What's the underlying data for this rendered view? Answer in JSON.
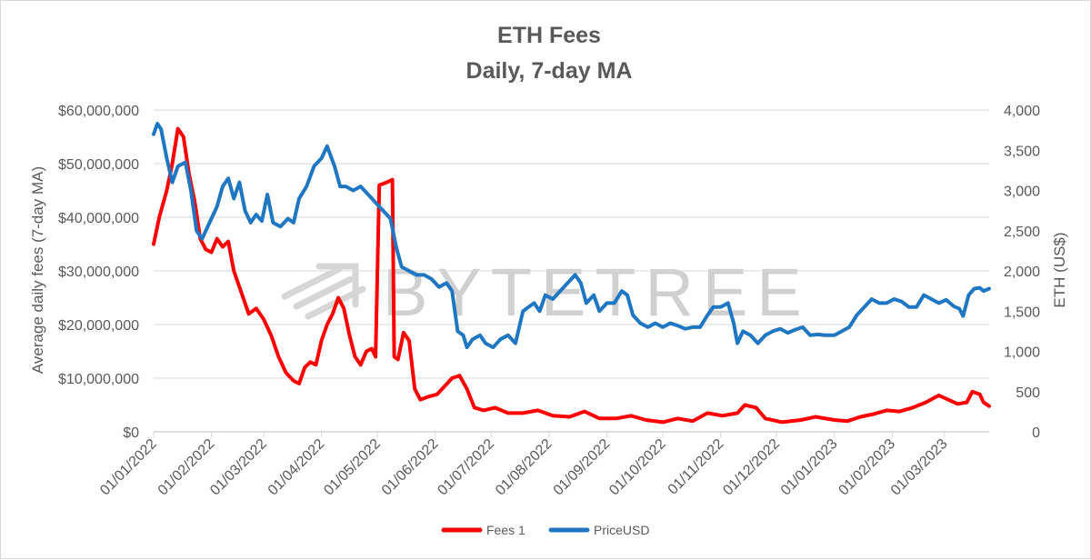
{
  "watermark": "BYTETREE",
  "colors": {
    "fees": "#ff0000",
    "price": "#1f77c4",
    "grid": "#d9d9d9",
    "text": "#595959"
  },
  "chart_data": {
    "type": "line",
    "title": "ETH Fees",
    "subtitle": "Daily, 7-day MA",
    "ylabel": "Average daily fees (7-day MA)",
    "y2label": "ETH (US$)",
    "ylim": [
      0,
      60000000
    ],
    "y2lim": [
      0,
      4000
    ],
    "yticks": [
      0,
      10000000,
      20000000,
      30000000,
      40000000,
      50000000,
      60000000
    ],
    "ytick_labels": [
      "$0",
      "$10,000,000",
      "$20,000,000",
      "$30,000,000",
      "$40,000,000",
      "$50,000,000",
      "$60,000,000"
    ],
    "y2ticks": [
      0,
      500,
      1000,
      1500,
      2000,
      2500,
      3000,
      3500,
      4000
    ],
    "y2tick_labels": [
      "0",
      "500",
      "1,000",
      "1,500",
      "2,000",
      "2,500",
      "3,000",
      "3,500",
      "4,000"
    ],
    "xlim": [
      "2022-01-01",
      "2023-03-25"
    ],
    "xticks": [
      "2022-01-01",
      "2022-02-01",
      "2022-03-01",
      "2022-04-01",
      "2022-05-01",
      "2022-06-01",
      "2022-07-01",
      "2022-08-01",
      "2022-09-01",
      "2022-10-01",
      "2022-11-01",
      "2022-12-01",
      "2023-01-01",
      "2023-02-01",
      "2023-03-01"
    ],
    "xtick_labels": [
      "01/01/2022",
      "01/02/2022",
      "01/03/2022",
      "01/04/2022",
      "01/05/2022",
      "01/06/2022",
      "01/07/2022",
      "01/08/2022",
      "01/09/2022",
      "01/10/2022",
      "01/11/2022",
      "01/12/2022",
      "01/01/2023",
      "01/02/2023",
      "01/03/2023"
    ],
    "grid": true,
    "legend": "bottom-center",
    "series": [
      {
        "name": "Fees 1",
        "axis": "left",
        "points": [
          [
            "2022-01-01",
            35000000
          ],
          [
            "2022-01-04",
            40000000
          ],
          [
            "2022-01-08",
            45000000
          ],
          [
            "2022-01-11",
            50000000
          ],
          [
            "2022-01-14",
            56500000
          ],
          [
            "2022-01-17",
            55000000
          ],
          [
            "2022-01-20",
            48000000
          ],
          [
            "2022-01-23",
            43000000
          ],
          [
            "2022-01-26",
            36000000
          ],
          [
            "2022-01-29",
            34000000
          ],
          [
            "2022-02-01",
            33500000
          ],
          [
            "2022-02-04",
            36000000
          ],
          [
            "2022-02-07",
            34500000
          ],
          [
            "2022-02-10",
            35500000
          ],
          [
            "2022-02-13",
            30000000
          ],
          [
            "2022-02-17",
            26000000
          ],
          [
            "2022-02-21",
            22000000
          ],
          [
            "2022-02-25",
            23000000
          ],
          [
            "2022-03-01",
            21000000
          ],
          [
            "2022-03-05",
            18000000
          ],
          [
            "2022-03-09",
            14000000
          ],
          [
            "2022-03-13",
            11000000
          ],
          [
            "2022-03-17",
            9500000
          ],
          [
            "2022-03-20",
            9000000
          ],
          [
            "2022-03-23",
            12000000
          ],
          [
            "2022-03-26",
            13000000
          ],
          [
            "2022-03-29",
            12500000
          ],
          [
            "2022-04-01",
            17000000
          ],
          [
            "2022-04-04",
            20000000
          ],
          [
            "2022-04-07",
            22000000
          ],
          [
            "2022-04-10",
            25000000
          ],
          [
            "2022-04-13",
            23000000
          ],
          [
            "2022-04-16",
            18000000
          ],
          [
            "2022-04-19",
            14000000
          ],
          [
            "2022-04-22",
            12500000
          ],
          [
            "2022-04-25",
            15000000
          ],
          [
            "2022-04-28",
            15500000
          ],
          [
            "2022-04-30",
            14000000
          ],
          [
            "2022-05-02",
            46000000
          ],
          [
            "2022-05-06",
            46500000
          ],
          [
            "2022-05-09",
            47000000
          ],
          [
            "2022-05-10",
            14000000
          ],
          [
            "2022-05-12",
            13500000
          ],
          [
            "2022-05-15",
            18500000
          ],
          [
            "2022-05-18",
            17000000
          ],
          [
            "2022-05-21",
            8000000
          ],
          [
            "2022-05-24",
            6000000
          ],
          [
            "2022-05-28",
            6500000
          ],
          [
            "2022-06-02",
            7000000
          ],
          [
            "2022-06-06",
            8500000
          ],
          [
            "2022-06-10",
            10000000
          ],
          [
            "2022-06-14",
            10500000
          ],
          [
            "2022-06-18",
            8000000
          ],
          [
            "2022-06-22",
            4500000
          ],
          [
            "2022-06-27",
            4000000
          ],
          [
            "2022-07-03",
            4500000
          ],
          [
            "2022-07-10",
            3500000
          ],
          [
            "2022-07-18",
            3500000
          ],
          [
            "2022-07-26",
            4000000
          ],
          [
            "2022-08-03",
            3000000
          ],
          [
            "2022-08-12",
            2800000
          ],
          [
            "2022-08-20",
            3800000
          ],
          [
            "2022-08-28",
            2500000
          ],
          [
            "2022-09-06",
            2500000
          ],
          [
            "2022-09-14",
            3000000
          ],
          [
            "2022-09-22",
            2200000
          ],
          [
            "2022-10-01",
            1800000
          ],
          [
            "2022-10-09",
            2500000
          ],
          [
            "2022-10-17",
            2000000
          ],
          [
            "2022-10-25",
            3500000
          ],
          [
            "2022-11-02",
            3000000
          ],
          [
            "2022-11-10",
            3500000
          ],
          [
            "2022-11-14",
            5000000
          ],
          [
            "2022-11-20",
            4500000
          ],
          [
            "2022-11-25",
            2500000
          ],
          [
            "2022-12-04",
            1800000
          ],
          [
            "2022-12-14",
            2200000
          ],
          [
            "2022-12-22",
            2800000
          ],
          [
            "2023-01-01",
            2200000
          ],
          [
            "2023-01-08",
            2000000
          ],
          [
            "2023-01-15",
            2800000
          ],
          [
            "2023-01-22",
            3300000
          ],
          [
            "2023-01-29",
            4000000
          ],
          [
            "2023-02-05",
            3800000
          ],
          [
            "2023-02-12",
            4500000
          ],
          [
            "2023-02-19",
            5500000
          ],
          [
            "2023-02-26",
            6800000
          ],
          [
            "2023-03-03",
            6000000
          ],
          [
            "2023-03-08",
            5200000
          ],
          [
            "2023-03-13",
            5500000
          ],
          [
            "2023-03-16",
            7500000
          ],
          [
            "2023-03-20",
            7000000
          ],
          [
            "2023-03-22",
            5500000
          ],
          [
            "2023-03-25",
            4800000
          ]
        ]
      },
      {
        "name": "PriceUSD",
        "axis": "right",
        "points": [
          [
            "2022-01-01",
            3700
          ],
          [
            "2022-01-03",
            3830
          ],
          [
            "2022-01-05",
            3760
          ],
          [
            "2022-01-08",
            3400
          ],
          [
            "2022-01-11",
            3100
          ],
          [
            "2022-01-14",
            3300
          ],
          [
            "2022-01-18",
            3350
          ],
          [
            "2022-01-21",
            3000
          ],
          [
            "2022-01-24",
            2500
          ],
          [
            "2022-01-27",
            2400
          ],
          [
            "2022-01-31",
            2600
          ],
          [
            "2022-02-04",
            2800
          ],
          [
            "2022-02-07",
            3050
          ],
          [
            "2022-02-10",
            3150
          ],
          [
            "2022-02-13",
            2900
          ],
          [
            "2022-02-16",
            3100
          ],
          [
            "2022-02-19",
            2750
          ],
          [
            "2022-02-22",
            2600
          ],
          [
            "2022-02-25",
            2700
          ],
          [
            "2022-02-28",
            2620
          ],
          [
            "2022-03-03",
            2950
          ],
          [
            "2022-03-06",
            2600
          ],
          [
            "2022-03-10",
            2550
          ],
          [
            "2022-03-14",
            2650
          ],
          [
            "2022-03-17",
            2600
          ],
          [
            "2022-03-20",
            2900
          ],
          [
            "2022-03-24",
            3050
          ],
          [
            "2022-03-28",
            3300
          ],
          [
            "2022-04-01",
            3400
          ],
          [
            "2022-04-04",
            3550
          ],
          [
            "2022-04-08",
            3300
          ],
          [
            "2022-04-11",
            3050
          ],
          [
            "2022-04-14",
            3050
          ],
          [
            "2022-04-18",
            3000
          ],
          [
            "2022-04-22",
            3050
          ],
          [
            "2022-04-26",
            2950
          ],
          [
            "2022-04-30",
            2850
          ],
          [
            "2022-05-04",
            2750
          ],
          [
            "2022-05-08",
            2650
          ],
          [
            "2022-05-11",
            2300
          ],
          [
            "2022-05-14",
            2050
          ],
          [
            "2022-05-18",
            2000
          ],
          [
            "2022-05-22",
            1950
          ],
          [
            "2022-05-26",
            1950
          ],
          [
            "2022-05-30",
            1900
          ],
          [
            "2022-06-03",
            1800
          ],
          [
            "2022-06-07",
            1850
          ],
          [
            "2022-06-10",
            1750
          ],
          [
            "2022-06-13",
            1250
          ],
          [
            "2022-06-16",
            1200
          ],
          [
            "2022-06-18",
            1050
          ],
          [
            "2022-06-21",
            1150
          ],
          [
            "2022-06-25",
            1200
          ],
          [
            "2022-06-28",
            1100
          ],
          [
            "2022-07-02",
            1050
          ],
          [
            "2022-07-06",
            1150
          ],
          [
            "2022-07-10",
            1200
          ],
          [
            "2022-07-14",
            1100
          ],
          [
            "2022-07-18",
            1500
          ],
          [
            "2022-07-21",
            1550
          ],
          [
            "2022-07-24",
            1600
          ],
          [
            "2022-07-27",
            1500
          ],
          [
            "2022-07-30",
            1700
          ],
          [
            "2022-08-03",
            1650
          ],
          [
            "2022-08-07",
            1750
          ],
          [
            "2022-08-11",
            1850
          ],
          [
            "2022-08-15",
            1950
          ],
          [
            "2022-08-18",
            1850
          ],
          [
            "2022-08-21",
            1600
          ],
          [
            "2022-08-25",
            1700
          ],
          [
            "2022-08-28",
            1500
          ],
          [
            "2022-09-01",
            1600
          ],
          [
            "2022-09-05",
            1600
          ],
          [
            "2022-09-09",
            1750
          ],
          [
            "2022-09-12",
            1700
          ],
          [
            "2022-09-15",
            1450
          ],
          [
            "2022-09-19",
            1350
          ],
          [
            "2022-09-23",
            1300
          ],
          [
            "2022-09-27",
            1350
          ],
          [
            "2022-10-01",
            1300
          ],
          [
            "2022-10-05",
            1350
          ],
          [
            "2022-10-09",
            1320
          ],
          [
            "2022-10-13",
            1280
          ],
          [
            "2022-10-17",
            1300
          ],
          [
            "2022-10-21",
            1300
          ],
          [
            "2022-10-25",
            1450
          ],
          [
            "2022-10-28",
            1550
          ],
          [
            "2022-11-01",
            1550
          ],
          [
            "2022-11-05",
            1600
          ],
          [
            "2022-11-08",
            1350
          ],
          [
            "2022-11-10",
            1100
          ],
          [
            "2022-11-13",
            1250
          ],
          [
            "2022-11-17",
            1200
          ],
          [
            "2022-11-21",
            1100
          ],
          [
            "2022-11-25",
            1200
          ],
          [
            "2022-11-29",
            1250
          ],
          [
            "2022-12-03",
            1280
          ],
          [
            "2022-12-07",
            1230
          ],
          [
            "2022-12-11",
            1270
          ],
          [
            "2022-12-15",
            1300
          ],
          [
            "2022-12-19",
            1200
          ],
          [
            "2022-12-23",
            1210
          ],
          [
            "2022-12-27",
            1200
          ],
          [
            "2023-01-01",
            1200
          ],
          [
            "2023-01-05",
            1250
          ],
          [
            "2023-01-09",
            1300
          ],
          [
            "2023-01-13",
            1450
          ],
          [
            "2023-01-17",
            1550
          ],
          [
            "2023-01-21",
            1650
          ],
          [
            "2023-01-25",
            1600
          ],
          [
            "2023-01-29",
            1600
          ],
          [
            "2023-02-02",
            1650
          ],
          [
            "2023-02-06",
            1620
          ],
          [
            "2023-02-10",
            1550
          ],
          [
            "2023-02-14",
            1550
          ],
          [
            "2023-02-18",
            1700
          ],
          [
            "2023-02-22",
            1650
          ],
          [
            "2023-02-26",
            1600
          ],
          [
            "2023-03-02",
            1640
          ],
          [
            "2023-03-06",
            1560
          ],
          [
            "2023-03-09",
            1530
          ],
          [
            "2023-03-11",
            1440
          ],
          [
            "2023-03-14",
            1700
          ],
          [
            "2023-03-17",
            1780
          ],
          [
            "2023-03-20",
            1790
          ],
          [
            "2023-03-22",
            1750
          ],
          [
            "2023-03-25",
            1780
          ]
        ]
      }
    ]
  }
}
